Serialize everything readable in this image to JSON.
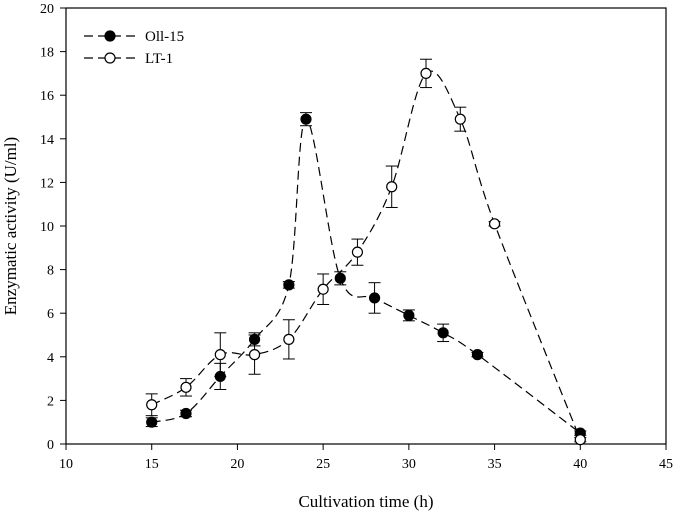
{
  "chart_data": {
    "type": "line",
    "title": "",
    "xlabel": "Cultivation time (h)",
    "ylabel": "Enzymatic activity (U/ml)",
    "xlim": [
      10,
      45
    ],
    "ylim": [
      0,
      20
    ],
    "xticks": [
      10,
      15,
      20,
      25,
      30,
      35,
      40,
      45
    ],
    "yticks": [
      0,
      2,
      4,
      6,
      8,
      10,
      12,
      14,
      16,
      18,
      20
    ],
    "grid": false,
    "legend_position": "top-left",
    "series": [
      {
        "name": "Oll-15",
        "marker": "filled-circle",
        "line_style": "dashed",
        "x": [
          15,
          17,
          19,
          21,
          23,
          24,
          26,
          28,
          30,
          32,
          34,
          40
        ],
        "y": [
          1.0,
          1.4,
          3.1,
          4.8,
          7.3,
          14.9,
          7.6,
          6.7,
          5.9,
          5.1,
          4.1,
          0.5
        ],
        "error": [
          0.2,
          0.15,
          0.6,
          0.3,
          0.15,
          0.3,
          0.3,
          0.7,
          0.25,
          0.4,
          0.1,
          0.1
        ]
      },
      {
        "name": "LT-1",
        "marker": "open-circle",
        "line_style": "dashed",
        "x": [
          15,
          17,
          19,
          21,
          23,
          25,
          27,
          29,
          31,
          33,
          35,
          40
        ],
        "y": [
          1.8,
          2.6,
          4.1,
          4.1,
          4.8,
          7.1,
          8.8,
          11.8,
          17.0,
          14.9,
          10.1,
          0.2
        ],
        "error": [
          0.5,
          0.4,
          1.0,
          0.9,
          0.9,
          0.7,
          0.6,
          0.95,
          0.65,
          0.55,
          0.1,
          0.1
        ]
      }
    ]
  }
}
